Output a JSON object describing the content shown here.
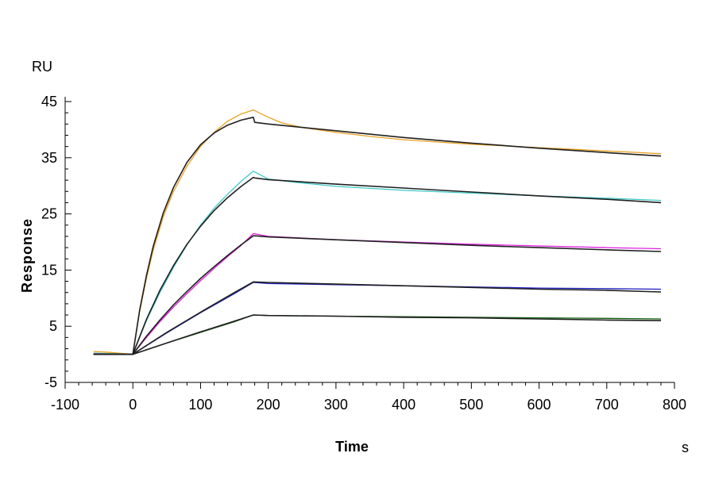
{
  "chart_data": {
    "type": "line",
    "title": "",
    "xlabel": "Time",
    "ylabel": "Response",
    "x_unit": "s",
    "y_unit": "RU",
    "xlim": [
      -100,
      800
    ],
    "ylim": [
      -5,
      45
    ],
    "x_ticks": [
      "-100",
      "0",
      "100",
      "200",
      "300",
      "400",
      "500",
      "600",
      "700",
      "800"
    ],
    "y_ticks": [
      "-5",
      "5",
      "15",
      "25",
      "35",
      "45"
    ],
    "grid": false,
    "legend": "none",
    "series": [
      {
        "color": "#E8A020",
        "x": [
          -58,
          -40,
          -20,
          0,
          10,
          20,
          30,
          45,
          60,
          80,
          100,
          120,
          140,
          160,
          178,
          200,
          220,
          250,
          300,
          350,
          400,
          450,
          500,
          550,
          600,
          650,
          700,
          750,
          780
        ],
        "y": [
          0.5,
          0.4,
          0.2,
          0.0,
          7.5,
          13.5,
          18.5,
          24.5,
          29.0,
          33.5,
          37.0,
          39.5,
          41.5,
          42.8,
          43.5,
          42.2,
          41.2,
          40.4,
          39.5,
          38.8,
          38.2,
          37.8,
          37.4,
          37.1,
          36.8,
          36.5,
          36.2,
          35.9,
          35.7
        ]
      },
      {
        "color": "#40C8C8",
        "x": [
          -58,
          -20,
          0,
          20,
          40,
          60,
          80,
          100,
          120,
          140,
          160,
          178,
          200,
          250,
          300,
          400,
          500,
          600,
          700,
          780
        ],
        "y": [
          0.2,
          0.1,
          0.0,
          6.0,
          11.0,
          15.5,
          19.5,
          23.0,
          26.0,
          28.5,
          30.8,
          32.6,
          31.2,
          30.5,
          29.9,
          29.2,
          28.7,
          28.2,
          27.8,
          27.4
        ]
      },
      {
        "color": "#E020E0",
        "x": [
          -58,
          0,
          20,
          40,
          60,
          80,
          100,
          120,
          140,
          160,
          178,
          200,
          250,
          300,
          400,
          500,
          600,
          700,
          780
        ],
        "y": [
          0.1,
          0.0,
          3.0,
          5.8,
          8.4,
          10.8,
          13.1,
          15.3,
          17.4,
          19.4,
          21.5,
          21.0,
          20.7,
          20.4,
          20.0,
          19.6,
          19.3,
          19.0,
          18.8
        ]
      },
      {
        "color": "#2020C0",
        "x": [
          -58,
          0,
          50,
          100,
          150,
          178,
          200,
          300,
          400,
          500,
          600,
          700,
          780
        ],
        "y": [
          0.0,
          0.0,
          3.8,
          7.4,
          10.8,
          12.8,
          12.6,
          12.4,
          12.2,
          12.0,
          11.8,
          11.7,
          11.6
        ]
      },
      {
        "color": "#106010",
        "x": [
          -58,
          0,
          50,
          100,
          150,
          178,
          200,
          300,
          400,
          500,
          600,
          700,
          780
        ],
        "y": [
          0.0,
          0.0,
          2.0,
          3.9,
          5.8,
          7.0,
          6.9,
          6.8,
          6.7,
          6.6,
          6.5,
          6.4,
          6.3
        ]
      },
      {
        "color": "#202020",
        "x": [
          -58,
          0,
          10,
          20,
          30,
          45,
          60,
          80,
          100,
          120,
          140,
          160,
          178,
          180,
          200,
          250,
          300,
          400,
          500,
          600,
          700,
          780
        ],
        "y": [
          0.0,
          0.0,
          7.8,
          14.0,
          19.2,
          25.2,
          29.7,
          34.2,
          37.3,
          39.4,
          40.8,
          41.7,
          42.2,
          41.3,
          41.0,
          40.4,
          39.8,
          38.6,
          37.6,
          36.7,
          35.9,
          35.3
        ]
      },
      {
        "color": "#202020",
        "x": [
          -58,
          0,
          20,
          40,
          60,
          80,
          100,
          120,
          140,
          160,
          178,
          180,
          200,
          300,
          400,
          500,
          600,
          700,
          780
        ],
        "y": [
          0.0,
          0.0,
          6.2,
          11.4,
          15.8,
          19.6,
          22.8,
          25.6,
          27.9,
          29.9,
          31.5,
          31.4,
          31.1,
          30.3,
          29.6,
          28.9,
          28.2,
          27.6,
          27.0
        ]
      },
      {
        "color": "#202020",
        "x": [
          -58,
          0,
          20,
          40,
          60,
          80,
          100,
          120,
          140,
          160,
          178,
          180,
          200,
          300,
          400,
          500,
          600,
          700,
          780
        ],
        "y": [
          0.0,
          0.0,
          3.2,
          6.1,
          8.8,
          11.2,
          13.5,
          15.6,
          17.6,
          19.5,
          21.1,
          21.1,
          20.9,
          20.4,
          19.9,
          19.4,
          19.0,
          18.6,
          18.3
        ]
      },
      {
        "color": "#202020",
        "x": [
          -58,
          0,
          50,
          100,
          150,
          178,
          200,
          300,
          400,
          500,
          600,
          700,
          780
        ],
        "y": [
          0.0,
          0.0,
          3.9,
          7.5,
          11.0,
          12.9,
          12.8,
          12.5,
          12.2,
          11.9,
          11.6,
          11.4,
          11.1
        ]
      },
      {
        "color": "#202020",
        "x": [
          -58,
          0,
          50,
          100,
          150,
          178,
          200,
          300,
          400,
          500,
          600,
          700,
          780
        ],
        "y": [
          0.0,
          0.0,
          2.0,
          4.0,
          5.9,
          7.0,
          6.9,
          6.8,
          6.6,
          6.5,
          6.3,
          6.1,
          6.0
        ]
      }
    ]
  }
}
